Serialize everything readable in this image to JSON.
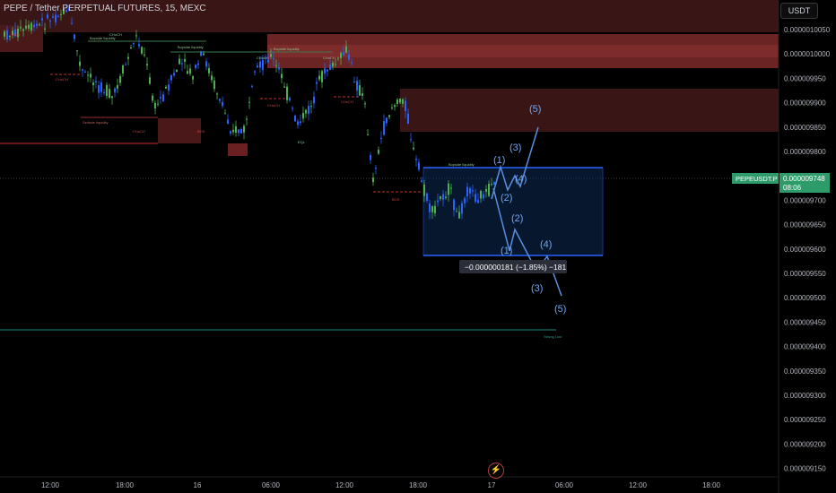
{
  "header": {
    "symbol_line": "PEPE / Tether PERPETUAL FUTURES, 15, MEXC"
  },
  "currency_button": "USDT",
  "price_label": {
    "symbol": "PEPEUSDT.P",
    "price": "0.000009748",
    "countdown": "08:06"
  },
  "measure_label": "−0.000000181 (−1.85%) −181",
  "price_axis": [
    "0.0000010050",
    "0.0000010000",
    "0.000009950",
    "0.000009900",
    "0.000009850",
    "0.000009800",
    "0.000009750",
    "0.000009700",
    "0.000009650",
    "0.000009600",
    "0.000009550",
    "0.000009500",
    "0.000009450",
    "0.000009400",
    "0.000009350",
    "0.000009300",
    "0.000009250",
    "0.000009200",
    "0.000009150"
  ],
  "time_axis": [
    "12:00",
    "18:00",
    "16",
    "06:00",
    "12:00",
    "18:00",
    "17",
    "06:00",
    "12:00",
    "18:00"
  ],
  "annotations": {
    "buyside1": "Buyside liquidity",
    "choch_top": "CHoCH",
    "buyside2": "Buyside liquidity",
    "buyside3": "Buyside liquidity",
    "buyside4": "Buyside liquidity",
    "sellside": "Sellside liquidity",
    "choch1": "CHoCH",
    "choch2": "CHoCH",
    "choch3": "CHoCH",
    "choch4": "CHoCH",
    "choch5": "CHoCH",
    "choch6": "CHoCH",
    "bos1": "BOS",
    "bos2": "BOS",
    "bos3": "BOS",
    "eql": "EQL",
    "strong_low": "Strong Low"
  },
  "waves_up": [
    "(1)",
    "(2)",
    "(3)",
    "(4)",
    "(5)"
  ],
  "waves_down": [
    "(1)",
    "(2)",
    "(3)",
    "(4)",
    "(5)"
  ],
  "colors": {
    "up": "#4caf50",
    "down": "#2962ff",
    "wave": "#6fa8f0",
    "supply": "#5a1c1c"
  }
}
